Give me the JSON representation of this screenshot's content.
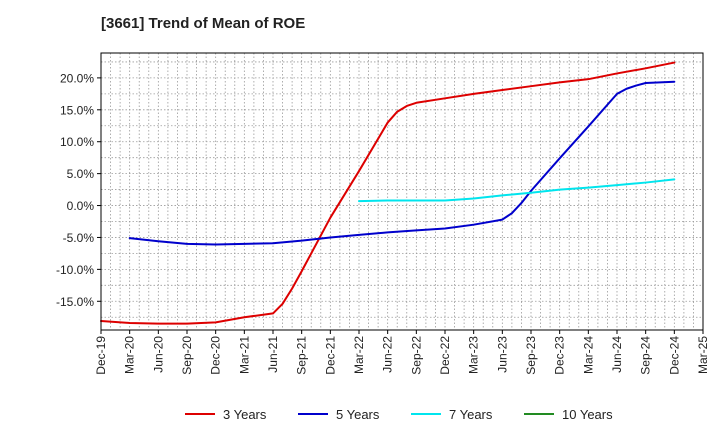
{
  "chart_data": {
    "type": "line",
    "title": "[3661]  Trend of Mean of ROE",
    "xlabel": "",
    "ylabel": "",
    "x_ticks": [
      "Dec-19",
      "Mar-20",
      "Jun-20",
      "Sep-20",
      "Dec-20",
      "Mar-21",
      "Jun-21",
      "Sep-21",
      "Dec-21",
      "Mar-22",
      "Jun-22",
      "Sep-22",
      "Dec-22",
      "Mar-23",
      "Jun-23",
      "Sep-23",
      "Dec-23",
      "Mar-24",
      "Jun-24",
      "Sep-24",
      "Dec-24",
      "Mar-25"
    ],
    "y_ticks": [
      {
        "value": 20,
        "label": "20.0%"
      },
      {
        "value": 15,
        "label": "15.0%"
      },
      {
        "value": 10,
        "label": "10.0%"
      },
      {
        "value": 5,
        "label": "5.0%"
      },
      {
        "value": 0,
        "label": "0.0%"
      },
      {
        "value": -5,
        "label": "-5.0%"
      },
      {
        "value": -10,
        "label": "-10.0%"
      },
      {
        "value": -15,
        "label": "-15.0%"
      }
    ],
    "ylim": [
      -19.5,
      23.9
    ],
    "grid": true,
    "legend_position": "bottom",
    "series": [
      {
        "name": "3 Years",
        "color": "#dd0000",
        "x": [
          "Dec-19",
          "Mar-20",
          "Jun-20",
          "Sep-20",
          "Dec-20",
          "Mar-21",
          "Jun-21",
          "Jul-21",
          "Aug-21",
          "Sep-21",
          "Dec-21",
          "Mar-22",
          "Jun-22",
          "Jul-22",
          "Aug-22",
          "Sep-22",
          "Dec-22",
          "Mar-23",
          "Jun-23",
          "Sep-23",
          "Dec-23",
          "Mar-24",
          "Jun-24",
          "Sep-24",
          "Dec-24"
        ],
        "values": [
          -18.1,
          -18.4,
          -18.5,
          -18.5,
          -18.3,
          -17.5,
          -16.9,
          -15.4,
          -13.0,
          -10.3,
          -1.9,
          5.4,
          13.0,
          14.7,
          15.6,
          16.1,
          16.8,
          17.5,
          18.1,
          18.7,
          19.3,
          19.8,
          20.7,
          21.5,
          22.4
        ]
      },
      {
        "name": "5 Years",
        "color": "#0000cc",
        "x": [
          "Mar-20",
          "Jun-20",
          "Sep-20",
          "Dec-20",
          "Mar-21",
          "Jun-21",
          "Sep-21",
          "Dec-21",
          "Mar-22",
          "Jun-22",
          "Sep-22",
          "Dec-22",
          "Mar-23",
          "Jun-23",
          "Jul-23",
          "Aug-23",
          "Sep-23",
          "Dec-23",
          "Mar-24",
          "Jun-24",
          "Jul-24",
          "Aug-24",
          "Sep-24",
          "Dec-24"
        ],
        "values": [
          -5.1,
          -5.6,
          -6.0,
          -6.1,
          -6.0,
          -5.9,
          -5.5,
          -5.0,
          -4.6,
          -4.2,
          -3.9,
          -3.6,
          -3.0,
          -2.2,
          -1.2,
          0.4,
          2.3,
          7.4,
          12.4,
          17.5,
          18.3,
          18.8,
          19.2,
          19.4
        ]
      },
      {
        "name": "7 Years",
        "color": "#00e5ee",
        "x": [
          "Mar-22",
          "Jun-22",
          "Sep-22",
          "Dec-22",
          "Mar-23",
          "Jun-23",
          "Sep-23",
          "Dec-23",
          "Mar-24",
          "Jun-24",
          "Sep-24",
          "Dec-24"
        ],
        "values": [
          0.7,
          0.8,
          0.8,
          0.8,
          1.1,
          1.6,
          2.0,
          2.5,
          2.8,
          3.2,
          3.6,
          4.1
        ]
      },
      {
        "name": "10 Years",
        "color": "#228b22",
        "x": [],
        "values": []
      }
    ]
  }
}
